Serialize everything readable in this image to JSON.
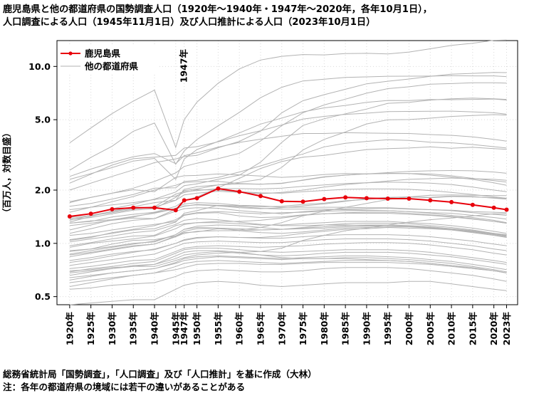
{
  "title_lines": [
    "鹿児島県と他の都道府県の国勢調査人口（1920年～1940年・1947年～2020年，各年10月1日），",
    "人口調査による人口（1945年11月1日）及び人口推計による人口（2023年10月1日）"
  ],
  "footnotes": [
    "総務省統計局「国勢調査」，「人口調査」及び「人口推計」を基に作成（大林）",
    "注：各年の都道府県の境域には若干の違いがあることがある"
  ],
  "colors": {
    "highlight": "#e8000b",
    "others": "#b3b3b3",
    "grid": "#d9d9d9"
  },
  "chart_data": {
    "type": "line",
    "y_scale": "log",
    "ylim": [
      0.45,
      14
    ],
    "y_ticks": [
      0.5,
      1.0,
      2.0,
      5.0,
      10.0
    ],
    "y_tick_labels": [
      "0.5",
      "1.0",
      "2.0",
      "5.0",
      "10.0"
    ],
    "ylabel": "（百万人，対数目盛）",
    "x": [
      1920,
      1925,
      1930,
      1935,
      1940,
      1945,
      1947,
      1950,
      1955,
      1960,
      1965,
      1970,
      1975,
      1980,
      1985,
      1990,
      1995,
      2000,
      2005,
      2010,
      2015,
      2020,
      2023
    ],
    "x_tick_labels": [
      "1920年",
      "1925年",
      "1930年",
      "1935年",
      "1940年",
      "1945年",
      "1947年",
      "1950年",
      "1955年",
      "1960年",
      "1965年",
      "1970年",
      "1975年",
      "1980年",
      "1985年",
      "1990年",
      "1995年",
      "2000年",
      "2005年",
      "2010年",
      "2015年",
      "2020年",
      "2023年"
    ],
    "annotation": {
      "text": "1947年",
      "x": 1947
    },
    "grid": true,
    "legend": {
      "position": "top-left",
      "entries": [
        "鹿児島県",
        "他の都道府県"
      ]
    },
    "highlight": {
      "name": "鹿児島県",
      "values": [
        1.42,
        1.47,
        1.56,
        1.59,
        1.59,
        1.54,
        1.75,
        1.8,
        2.04,
        1.96,
        1.85,
        1.73,
        1.72,
        1.78,
        1.82,
        1.8,
        1.79,
        1.79,
        1.75,
        1.71,
        1.65,
        1.59,
        1.55
      ]
    },
    "others": {
      "name": "他の都道府県",
      "series": [
        [
          3.7,
          4.49,
          5.41,
          6.37,
          7.35,
          3.49,
          5.0,
          6.28,
          8.04,
          9.68,
          10.87,
          11.41,
          11.67,
          11.62,
          11.83,
          11.86,
          11.77,
          12.06,
          12.58,
          13.16,
          13.52,
          14.05,
          14.09
        ],
        [
          2.59,
          3.06,
          3.54,
          4.3,
          4.79,
          2.8,
          3.33,
          3.86,
          4.62,
          5.5,
          6.66,
          7.62,
          8.28,
          8.47,
          8.67,
          8.73,
          8.8,
          8.81,
          8.82,
          8.87,
          8.84,
          8.84,
          8.76
        ],
        [
          2.39,
          2.63,
          2.86,
          3.09,
          3.22,
          2.82,
          3.13,
          3.25,
          3.5,
          3.72,
          3.88,
          4.03,
          4.18,
          4.18,
          4.22,
          4.2,
          4.19,
          4.18,
          4.12,
          4.08,
          4.0,
          3.87,
          3.78
        ],
        [
          2.0,
          2.19,
          2.39,
          2.6,
          2.86,
          3.0,
          3.1,
          3.14,
          3.47,
          3.77,
          4.31,
          5.47,
          6.4,
          6.92,
          7.43,
          7.98,
          8.25,
          8.49,
          8.79,
          9.05,
          9.13,
          9.24,
          9.23
        ],
        [
          1.7,
          1.82,
          1.92,
          2.05,
          2.24,
          2.5,
          2.72,
          2.84,
          3.01,
          3.23,
          3.79,
          4.63,
          5.47,
          6.06,
          6.53,
          7.06,
          7.49,
          7.67,
          7.93,
          8.0,
          8.08,
          8.09,
          8.05
        ],
        [
          1.4,
          1.47,
          1.57,
          1.66,
          1.78,
          1.95,
          2.12,
          2.17,
          2.3,
          2.43,
          2.88,
          3.72,
          4.64,
          5.06,
          5.4,
          5.74,
          6.19,
          6.27,
          6.45,
          6.56,
          6.63,
          6.57,
          6.51
        ],
        [
          1.32,
          1.42,
          1.52,
          1.61,
          1.7,
          1.75,
          2.02,
          2.09,
          2.14,
          2.21,
          2.3,
          2.69,
          3.37,
          3.87,
          4.26,
          4.73,
          4.99,
          5.01,
          5.1,
          5.22,
          5.28,
          5.34,
          5.31
        ],
        [
          2.19,
          2.46,
          2.77,
          3.01,
          3.07,
          3.14,
          3.46,
          3.52,
          3.75,
          4.06,
          4.33,
          4.67,
          5.04,
          5.22,
          5.36,
          5.44,
          5.56,
          5.57,
          5.58,
          5.59,
          5.54,
          5.47,
          5.37
        ],
        [
          2.3,
          2.48,
          2.68,
          2.92,
          3.02,
          2.3,
          3.0,
          3.39,
          3.77,
          4.21,
          4.72,
          5.11,
          5.54,
          5.83,
          6.02,
          6.27,
          6.42,
          6.41,
          6.5,
          6.49,
          6.51,
          6.54,
          6.46
        ],
        [
          1.5,
          1.6,
          1.72,
          1.84,
          2.0,
          2.13,
          2.21,
          2.23,
          2.24,
          2.18,
          2.16,
          2.18,
          2.28,
          2.38,
          2.43,
          2.47,
          2.48,
          2.48,
          2.47,
          2.41,
          2.33,
          2.26,
          2.22
        ],
        [
          1.72,
          1.82,
          1.92,
          2.01,
          1.96,
          2.36,
          2.41,
          2.42,
          2.47,
          2.44,
          2.4,
          2.36,
          2.39,
          2.45,
          2.48,
          2.47,
          2.49,
          2.48,
          2.43,
          2.37,
          2.3,
          2.2,
          2.13
        ],
        [
          1.3,
          1.33,
          1.41,
          1.46,
          1.5,
          1.62,
          1.74,
          1.83,
          2.06,
          2.33,
          2.65,
          2.9,
          3.07,
          3.14,
          3.27,
          3.39,
          3.43,
          3.46,
          3.51,
          3.45,
          3.49,
          3.43,
          3.4
        ],
        [
          1.62,
          1.68,
          1.78,
          1.89,
          2.05,
          2.06,
          2.24,
          2.27,
          2.36,
          2.53,
          2.74,
          2.98,
          3.2,
          3.51,
          3.68,
          3.77,
          3.85,
          3.82,
          3.73,
          3.7,
          3.62,
          3.52,
          3.46
        ],
        [
          1.36,
          1.4,
          1.47,
          1.54,
          1.57,
          1.82,
          1.99,
          2.03,
          2.14,
          2.17,
          2.16,
          2.19,
          2.27,
          2.37,
          2.43,
          2.47,
          2.51,
          2.55,
          2.57,
          2.58,
          2.57,
          2.53,
          2.49
        ],
        [
          0.9,
          0.93,
          0.99,
          1.04,
          1.05,
          1.1,
          1.15,
          1.16,
          1.21,
          1.19,
          1.23,
          1.31,
          1.43,
          1.52,
          1.6,
          1.68,
          1.77,
          1.83,
          1.87,
          1.88,
          1.87,
          1.86,
          1.86
        ],
        [
          1.14,
          1.21,
          1.29,
          1.35,
          1.38,
          1.56,
          1.63,
          1.65,
          1.63,
          1.59,
          1.57,
          1.59,
          1.63,
          1.67,
          1.73,
          1.79,
          1.82,
          1.83,
          1.81,
          1.84,
          1.83,
          1.81,
          1.79
        ],
        [
          1.35,
          1.44,
          1.51,
          1.58,
          1.61,
          1.9,
          1.96,
          1.99,
          2.04,
          2.04,
          2.03,
          2.05,
          2.1,
          2.14,
          2.18,
          2.2,
          2.22,
          2.21,
          2.19,
          2.15,
          2.08,
          2.0,
          1.96
        ],
        [
          1.38,
          1.44,
          1.49,
          1.56,
          1.6,
          1.75,
          1.88,
          1.92,
          1.97,
          1.94,
          1.91,
          1.94,
          2.0,
          2.08,
          2.15,
          2.2,
          2.25,
          2.3,
          2.32,
          2.34,
          2.32,
          2.3,
          2.27
        ],
        [
          1.05,
          1.09,
          1.14,
          1.19,
          1.21,
          1.32,
          1.48,
          1.53,
          1.64,
          1.63,
          1.61,
          1.62,
          1.66,
          1.69,
          1.74,
          1.77,
          1.81,
          1.83,
          1.82,
          1.85,
          1.84,
          1.8,
          1.78
        ],
        [
          1.19,
          1.27,
          1.36,
          1.41,
          1.49,
          1.58,
          1.67,
          1.7,
          1.68,
          1.64,
          1.63,
          1.6,
          1.6,
          1.6,
          1.6,
          1.59,
          1.59,
          1.57,
          1.55,
          1.54,
          1.51,
          1.5,
          1.49
        ],
        [
          1.26,
          1.3,
          1.35,
          1.39,
          1.38,
          1.52,
          1.57,
          1.59,
          1.58,
          1.53,
          1.5,
          1.47,
          1.51,
          1.54,
          1.57,
          1.57,
          1.58,
          1.56,
          1.55,
          1.53,
          1.49,
          1.46,
          1.44
        ],
        [
          1.04,
          1.08,
          1.15,
          1.2,
          1.26,
          1.36,
          1.45,
          1.49,
          1.51,
          1.49,
          1.47,
          1.49,
          1.5,
          1.52,
          1.53,
          1.53,
          1.53,
          1.51,
          1.49,
          1.48,
          1.44,
          1.4,
          1.37
        ],
        [
          1.3,
          1.34,
          1.36,
          1.42,
          1.48,
          1.57,
          1.62,
          1.66,
          1.64,
          1.61,
          1.58,
          1.56,
          1.56,
          1.56,
          1.55,
          1.54,
          1.53,
          1.51,
          1.48,
          1.44,
          1.4,
          1.35,
          1.31
        ],
        [
          0.97,
          1.01,
          1.06,
          1.1,
          1.11,
          1.26,
          1.29,
          1.31,
          1.33,
          1.33,
          1.35,
          1.39,
          1.44,
          1.47,
          1.49,
          1.5,
          1.5,
          1.48,
          1.45,
          1.42,
          1.38,
          1.33,
          1.3
        ],
        [
          1.02,
          1.06,
          1.1,
          1.15,
          1.18,
          1.28,
          1.35,
          1.38,
          1.36,
          1.32,
          1.28,
          1.26,
          1.26,
          1.27,
          1.27,
          1.26,
          1.26,
          1.25,
          1.23,
          1.2,
          1.16,
          1.12,
          1.09
        ],
        [
          0.95,
          1.0,
          1.03,
          1.06,
          1.1,
          1.21,
          1.28,
          1.31,
          1.31,
          1.29,
          1.27,
          1.27,
          1.29,
          1.31,
          1.33,
          1.33,
          1.33,
          1.31,
          1.29,
          1.26,
          1.22,
          1.17,
          1.14
        ],
        [
          0.84,
          0.88,
          0.92,
          0.96,
          0.99,
          1.1,
          1.17,
          1.21,
          1.22,
          1.21,
          1.19,
          1.2,
          1.23,
          1.27,
          1.29,
          1.3,
          1.3,
          1.29,
          1.26,
          1.23,
          1.19,
          1.14,
          1.1
        ],
        [
          0.86,
          0.89,
          0.93,
          0.97,
          0.99,
          1.09,
          1.14,
          1.17,
          1.18,
          1.18,
          1.19,
          1.2,
          1.22,
          1.24,
          1.26,
          1.27,
          1.27,
          1.26,
          1.24,
          1.21,
          1.18,
          1.14,
          1.12
        ],
        [
          0.8,
          0.83,
          0.87,
          0.9,
          0.92,
          1.0,
          1.05,
          1.08,
          1.09,
          1.08,
          1.07,
          1.07,
          1.09,
          1.11,
          1.12,
          1.12,
          1.12,
          1.11,
          1.09,
          1.06,
          1.03,
          0.99,
          0.97
        ],
        [
          0.75,
          0.78,
          0.81,
          0.84,
          0.87,
          0.96,
          1.0,
          1.02,
          1.03,
          1.02,
          1.01,
          1.01,
          1.03,
          1.05,
          1.06,
          1.06,
          1.06,
          1.05,
          1.03,
          1.0,
          0.97,
          0.93,
          0.91
        ],
        [
          0.72,
          0.74,
          0.77,
          0.8,
          0.81,
          0.9,
          0.94,
          0.96,
          0.97,
          0.96,
          0.95,
          0.96,
          0.97,
          0.99,
          1.0,
          1.01,
          1.01,
          1.0,
          0.98,
          0.95,
          0.92,
          0.88,
          0.86
        ],
        [
          0.69,
          0.72,
          0.74,
          0.77,
          0.79,
          0.88,
          0.92,
          0.94,
          0.94,
          0.92,
          0.9,
          0.89,
          0.9,
          0.91,
          0.92,
          0.92,
          0.92,
          0.91,
          0.89,
          0.86,
          0.83,
          0.8,
          0.78
        ],
        [
          0.66,
          0.69,
          0.72,
          0.75,
          0.76,
          0.85,
          0.89,
          0.91,
          0.91,
          0.89,
          0.86,
          0.83,
          0.82,
          0.82,
          0.82,
          0.81,
          0.8,
          0.79,
          0.77,
          0.75,
          0.72,
          0.7,
          0.68
        ],
        [
          0.62,
          0.65,
          0.68,
          0.7,
          0.72,
          0.78,
          0.82,
          0.84,
          0.85,
          0.84,
          0.83,
          0.82,
          0.83,
          0.84,
          0.85,
          0.85,
          0.84,
          0.83,
          0.81,
          0.79,
          0.76,
          0.73,
          0.71
        ],
        [
          0.6,
          0.62,
          0.64,
          0.66,
          0.68,
          0.74,
          0.77,
          0.79,
          0.8,
          0.79,
          0.78,
          0.77,
          0.78,
          0.79,
          0.8,
          0.8,
          0.8,
          0.79,
          0.77,
          0.75,
          0.73,
          0.7,
          0.68
        ],
        [
          0.57,
          0.6,
          0.63,
          0.66,
          0.68,
          0.71,
          0.73,
          0.76,
          0.77,
          0.77,
          0.76,
          0.76,
          0.77,
          0.78,
          0.78,
          0.78,
          0.78,
          0.77,
          0.76,
          0.74,
          0.72,
          0.7,
          0.68
        ],
        [
          0.45,
          0.46,
          0.47,
          0.48,
          0.48,
          0.55,
          0.58,
          0.6,
          0.61,
          0.6,
          0.58,
          0.57,
          0.58,
          0.59,
          0.6,
          0.6,
          0.6,
          0.61,
          0.61,
          0.59,
          0.57,
          0.55,
          0.54
        ],
        [
          0.7,
          0.71,
          0.73,
          0.74,
          0.74,
          0.8,
          0.83,
          0.86,
          0.88,
          0.89,
          0.9,
          0.94,
          1.04,
          1.11,
          1.18,
          1.22,
          1.27,
          1.32,
          1.36,
          1.39,
          1.43,
          1.47,
          1.47
        ],
        [
          0.91,
          0.93,
          0.96,
          1.0,
          1.02,
          1.12,
          1.2,
          1.23,
          1.22,
          1.18,
          1.15,
          1.14,
          1.16,
          1.19,
          1.22,
          1.23,
          1.24,
          1.24,
          1.22,
          1.2,
          1.17,
          1.13,
          1.1
        ],
        [
          1.55,
          1.6,
          1.65,
          1.7,
          1.77,
          1.85,
          1.94,
          2.01,
          2.0,
          1.96,
          1.93,
          1.92,
          1.96,
          1.99,
          2.02,
          2.03,
          2.03,
          2.02,
          1.99,
          1.94,
          1.89,
          1.83,
          1.8
        ],
        [
          1.11,
          1.14,
          1.19,
          1.24,
          1.28,
          1.33,
          1.44,
          1.48,
          1.49,
          1.43,
          1.4,
          1.41,
          1.45,
          1.47,
          1.48,
          1.48,
          1.48,
          1.46,
          1.44,
          1.41,
          1.37,
          1.33,
          1.3
        ],
        [
          0.78,
          0.81,
          0.85,
          0.89,
          0.93,
          1.0,
          1.04,
          1.07,
          1.09,
          1.08,
          1.08,
          1.1,
          1.14,
          1.17,
          1.2,
          1.21,
          1.23,
          1.22,
          1.21,
          1.19,
          1.16,
          1.13,
          1.11
        ],
        [
          0.87,
          0.91,
          0.95,
          0.99,
          1.03,
          1.12,
          1.2,
          1.25,
          1.27,
          1.26,
          1.23,
          1.2,
          1.21,
          1.22,
          1.24,
          1.25,
          1.26,
          1.25,
          1.22,
          1.19,
          1.15,
          1.11,
          1.08
        ],
        [
          0.68,
          0.7,
          0.72,
          0.74,
          0.76,
          0.82,
          0.86,
          0.88,
          0.9,
          0.88,
          0.86,
          0.85,
          0.86,
          0.88,
          0.89,
          0.89,
          0.89,
          0.88,
          0.86,
          0.84,
          0.81,
          0.78,
          0.76
        ],
        [
          0.64,
          0.66,
          0.68,
          0.7,
          0.72,
          0.77,
          0.8,
          0.82,
          0.84,
          0.83,
          0.82,
          0.81,
          0.82,
          0.82,
          0.83,
          0.83,
          0.82,
          0.81,
          0.79,
          0.77,
          0.74,
          0.71,
          0.69
        ],
        [
          0.55,
          0.56,
          0.58,
          0.59,
          0.6,
          0.65,
          0.68,
          0.7,
          0.71,
          0.7,
          0.69,
          0.69,
          0.7,
          0.72,
          0.73,
          0.73,
          0.73,
          0.72,
          0.7,
          0.68,
          0.66,
          0.63,
          0.61
        ]
      ]
    }
  }
}
